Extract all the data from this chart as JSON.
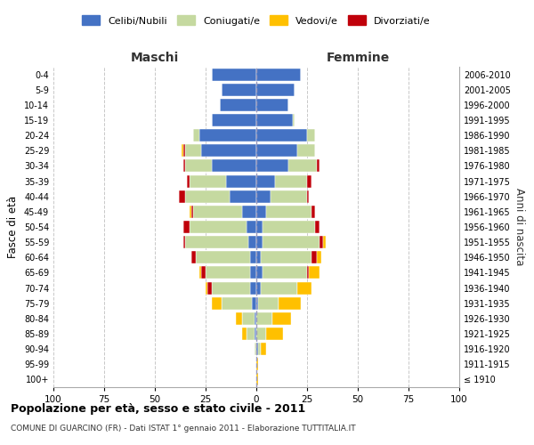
{
  "age_groups": [
    "100+",
    "95-99",
    "90-94",
    "85-89",
    "80-84",
    "75-79",
    "70-74",
    "65-69",
    "60-64",
    "55-59",
    "50-54",
    "45-49",
    "40-44",
    "35-39",
    "30-34",
    "25-29",
    "20-24",
    "15-19",
    "10-14",
    "5-9",
    "0-4"
  ],
  "birth_years": [
    "≤ 1910",
    "1911-1915",
    "1916-1920",
    "1921-1925",
    "1926-1930",
    "1931-1935",
    "1936-1940",
    "1941-1945",
    "1946-1950",
    "1951-1955",
    "1956-1960",
    "1961-1965",
    "1966-1970",
    "1971-1975",
    "1976-1980",
    "1981-1985",
    "1986-1990",
    "1991-1995",
    "1996-2000",
    "2001-2005",
    "2006-2010"
  ],
  "males": {
    "celibi": [
      0,
      0,
      0,
      1,
      1,
      2,
      3,
      3,
      3,
      4,
      5,
      7,
      13,
      15,
      22,
      27,
      28,
      22,
      18,
      17,
      22
    ],
    "coniugati": [
      0,
      0,
      1,
      4,
      6,
      15,
      19,
      22,
      27,
      31,
      28,
      24,
      22,
      18,
      13,
      8,
      3,
      0,
      0,
      0,
      0
    ],
    "vedovi": [
      0,
      0,
      0,
      2,
      3,
      5,
      1,
      1,
      0,
      0,
      0,
      1,
      0,
      0,
      0,
      1,
      0,
      0,
      0,
      0,
      0
    ],
    "divorziati": [
      0,
      0,
      0,
      0,
      0,
      0,
      2,
      2,
      2,
      1,
      3,
      1,
      3,
      1,
      1,
      1,
      0,
      0,
      0,
      0,
      0
    ]
  },
  "females": {
    "nubili": [
      0,
      0,
      1,
      0,
      0,
      1,
      2,
      3,
      2,
      3,
      3,
      5,
      7,
      9,
      16,
      20,
      25,
      18,
      16,
      19,
      22
    ],
    "coniugate": [
      0,
      0,
      1,
      5,
      8,
      10,
      18,
      22,
      25,
      28,
      26,
      22,
      18,
      16,
      14,
      9,
      4,
      1,
      0,
      0,
      0
    ],
    "vedove": [
      1,
      1,
      3,
      8,
      9,
      11,
      7,
      5,
      2,
      1,
      0,
      0,
      0,
      0,
      0,
      0,
      0,
      0,
      0,
      0,
      0
    ],
    "divorziate": [
      0,
      0,
      0,
      0,
      0,
      0,
      0,
      1,
      3,
      2,
      2,
      2,
      1,
      2,
      1,
      0,
      0,
      0,
      0,
      0,
      0
    ]
  },
  "colors": {
    "celibi": "#4472C4",
    "coniugati": "#c5d9a0",
    "vedovi": "#ffc000",
    "divorziati": "#c0000a"
  },
  "xlim": 100,
  "xticks": [
    -100,
    -75,
    -50,
    -25,
    0,
    25,
    50,
    75,
    100
  ],
  "title": "Popolazione per età, sesso e stato civile - 2011",
  "subtitle": "COMUNE DI GUARCINO (FR) - Dati ISTAT 1° gennaio 2011 - Elaborazione TUTTITALIA.IT",
  "ylabel": "Fasce di età",
  "right_ylabel": "Anni di nascita",
  "xlabel_left": "Maschi",
  "xlabel_right": "Femmine",
  "bg_color": "#ffffff",
  "grid_color": "#c8c8c8",
  "legend_labels": [
    "Celibi/Nubili",
    "Coniugati/e",
    "Vedovi/e",
    "Divorziati/e"
  ]
}
